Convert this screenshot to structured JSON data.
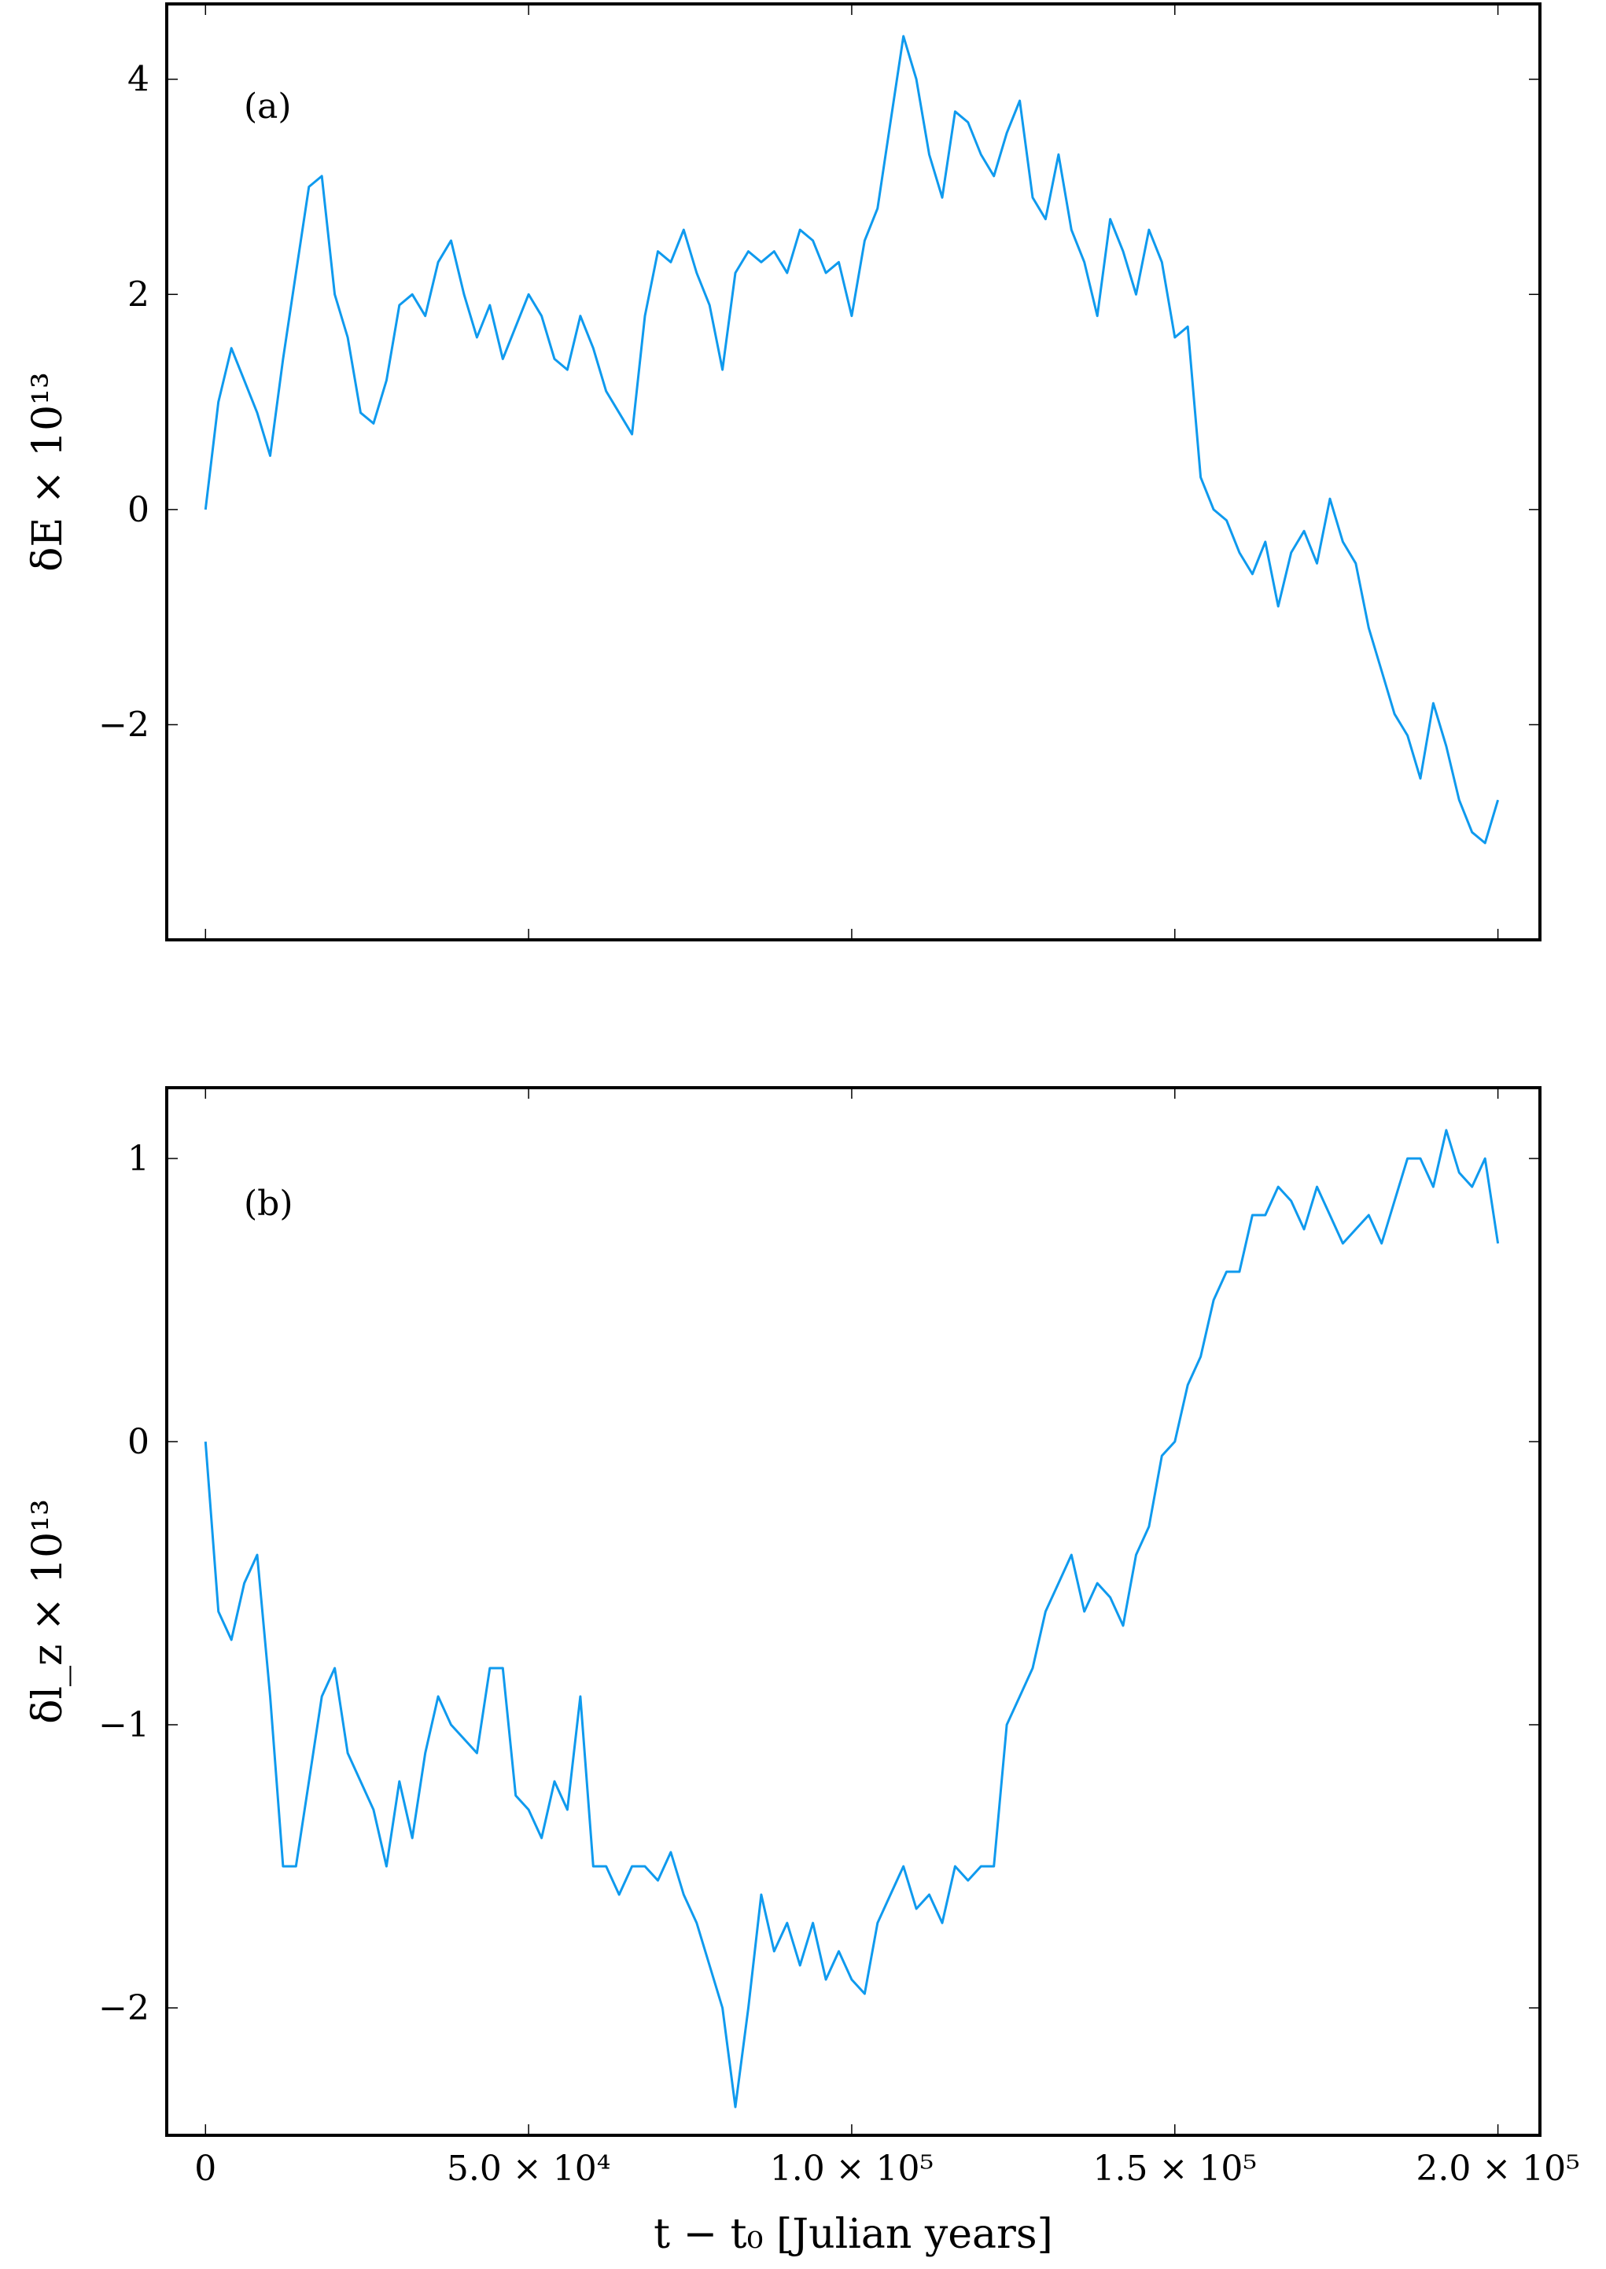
{
  "figure": {
    "xlabel": "t − t₀ [Julian years]",
    "xticks": [
      {
        "value": 0,
        "label": "0"
      },
      {
        "value": 50000,
        "label": "5.0 × 10⁴"
      },
      {
        "value": 100000,
        "label": "1.0 × 10⁵"
      },
      {
        "value": 150000,
        "label": "1.5 × 10⁵"
      },
      {
        "value": 200000,
        "label": "2.0 × 10⁵"
      }
    ]
  },
  "colors": {
    "series": "#0f9aee"
  },
  "chart_data": [
    {
      "type": "line",
      "panel_label": "(a)",
      "ylabel": "δE × 10¹³",
      "xlim": [
        -6000,
        206500
      ],
      "ylim": [
        -4.0,
        4.7
      ],
      "yticks": [
        {
          "value": -2,
          "label": "−2"
        },
        {
          "value": 0,
          "label": "0"
        },
        {
          "value": 2,
          "label": "2"
        },
        {
          "value": 4,
          "label": "4"
        }
      ],
      "grid": false,
      "x": [
        0,
        2000,
        4000,
        6000,
        8000,
        10000,
        12000,
        14000,
        16000,
        18000,
        20000,
        22000,
        24000,
        26000,
        28000,
        30000,
        32000,
        34000,
        36000,
        38000,
        40000,
        42000,
        44000,
        46000,
        48000,
        50000,
        52000,
        54000,
        56000,
        58000,
        60000,
        62000,
        64000,
        66000,
        68000,
        70000,
        72000,
        74000,
        76000,
        78000,
        80000,
        82000,
        84000,
        86000,
        88000,
        90000,
        92000,
        94000,
        96000,
        98000,
        100000,
        102000,
        104000,
        106000,
        108000,
        110000,
        112000,
        114000,
        116000,
        118000,
        120000,
        122000,
        124000,
        126000,
        128000,
        130000,
        132000,
        134000,
        136000,
        138000,
        140000,
        142000,
        144000,
        146000,
        148000,
        150000,
        152000,
        154000,
        156000,
        158000,
        160000,
        162000,
        164000,
        166000,
        168000,
        170000,
        172000,
        174000,
        176000,
        178000,
        180000,
        182000,
        184000,
        186000,
        188000,
        190000,
        192000,
        194000,
        196000,
        198000,
        200000
      ],
      "y": [
        0.0,
        1.0,
        1.5,
        1.2,
        0.9,
        0.5,
        1.4,
        2.2,
        3.0,
        3.1,
        2.0,
        1.6,
        0.9,
        0.8,
        1.2,
        1.9,
        2.0,
        1.8,
        2.3,
        2.5,
        2.0,
        1.6,
        1.9,
        1.4,
        1.7,
        2.0,
        1.8,
        1.4,
        1.3,
        1.8,
        1.5,
        1.1,
        0.9,
        0.7,
        1.8,
        2.4,
        2.3,
        2.6,
        2.2,
        1.9,
        1.3,
        2.2,
        2.4,
        2.3,
        2.4,
        2.2,
        2.6,
        2.5,
        2.2,
        2.3,
        1.8,
        2.5,
        2.8,
        3.6,
        4.4,
        4.0,
        3.3,
        2.9,
        3.7,
        3.6,
        3.3,
        3.1,
        3.5,
        3.8,
        2.9,
        2.7,
        3.3,
        2.6,
        2.3,
        1.8,
        2.7,
        2.4,
        2.0,
        2.6,
        2.3,
        1.6,
        1.7,
        0.3,
        0.0,
        -0.1,
        -0.4,
        -0.6,
        -0.3,
        -0.9,
        -0.4,
        -0.2,
        -0.5,
        0.1,
        -0.3,
        -0.5,
        -1.1,
        -1.5,
        -1.9,
        -2.1,
        -2.5,
        -1.8,
        -2.2,
        -2.7,
        -3.0,
        -3.1,
        -2.7
      ]
    },
    {
      "type": "line",
      "panel_label": "(b)",
      "ylabel": "δl_z × 10¹³",
      "xlim": [
        -6000,
        206500
      ],
      "ylim": [
        -2.45,
        1.25
      ],
      "yticks": [
        {
          "value": -2,
          "label": "−2"
        },
        {
          "value": -1,
          "label": "−1"
        },
        {
          "value": 0,
          "label": "0"
        },
        {
          "value": 1,
          "label": "1"
        }
      ],
      "grid": false,
      "x": [
        0,
        2000,
        4000,
        6000,
        8000,
        10000,
        12000,
        14000,
        16000,
        18000,
        20000,
        22000,
        24000,
        26000,
        28000,
        30000,
        32000,
        34000,
        36000,
        38000,
        40000,
        42000,
        44000,
        46000,
        48000,
        50000,
        52000,
        54000,
        56000,
        58000,
        60000,
        62000,
        64000,
        66000,
        68000,
        70000,
        72000,
        74000,
        76000,
        78000,
        80000,
        82000,
        84000,
        86000,
        88000,
        90000,
        92000,
        94000,
        96000,
        98000,
        100000,
        102000,
        104000,
        106000,
        108000,
        110000,
        112000,
        114000,
        116000,
        118000,
        120000,
        122000,
        124000,
        126000,
        128000,
        130000,
        132000,
        134000,
        136000,
        138000,
        140000,
        142000,
        144000,
        146000,
        148000,
        150000,
        152000,
        154000,
        156000,
        158000,
        160000,
        162000,
        164000,
        166000,
        168000,
        170000,
        172000,
        174000,
        176000,
        178000,
        180000,
        182000,
        184000,
        186000,
        188000,
        190000,
        192000,
        194000,
        196000,
        198000,
        200000
      ],
      "y": [
        0.0,
        -0.6,
        -0.7,
        -0.5,
        -0.4,
        -0.9,
        -1.5,
        -1.5,
        -1.2,
        -0.9,
        -0.8,
        -1.1,
        -1.2,
        -1.3,
        -1.5,
        -1.2,
        -1.4,
        -1.1,
        -0.9,
        -1.0,
        -1.05,
        -1.1,
        -0.8,
        -0.8,
        -1.25,
        -1.3,
        -1.4,
        -1.2,
        -1.3,
        -0.9,
        -1.5,
        -1.5,
        -1.6,
        -1.5,
        -1.5,
        -1.55,
        -1.45,
        -1.6,
        -1.7,
        -1.85,
        -2.0,
        -2.35,
        -2.0,
        -1.6,
        -1.8,
        -1.7,
        -1.85,
        -1.7,
        -1.9,
        -1.8,
        -1.9,
        -1.95,
        -1.7,
        -1.6,
        -1.5,
        -1.65,
        -1.6,
        -1.7,
        -1.5,
        -1.55,
        -1.5,
        -1.5,
        -1.0,
        -0.9,
        -0.8,
        -0.6,
        -0.5,
        -0.4,
        -0.6,
        -0.5,
        -0.55,
        -0.65,
        -0.4,
        -0.3,
        -0.05,
        0.0,
        0.2,
        0.3,
        0.5,
        0.6,
        0.6,
        0.8,
        0.8,
        0.9,
        0.85,
        0.75,
        0.9,
        0.8,
        0.7,
        0.75,
        0.8,
        0.7,
        0.85,
        1.0,
        1.0,
        0.9,
        1.1,
        0.95,
        0.9,
        1.0,
        0.7
      ]
    }
  ]
}
